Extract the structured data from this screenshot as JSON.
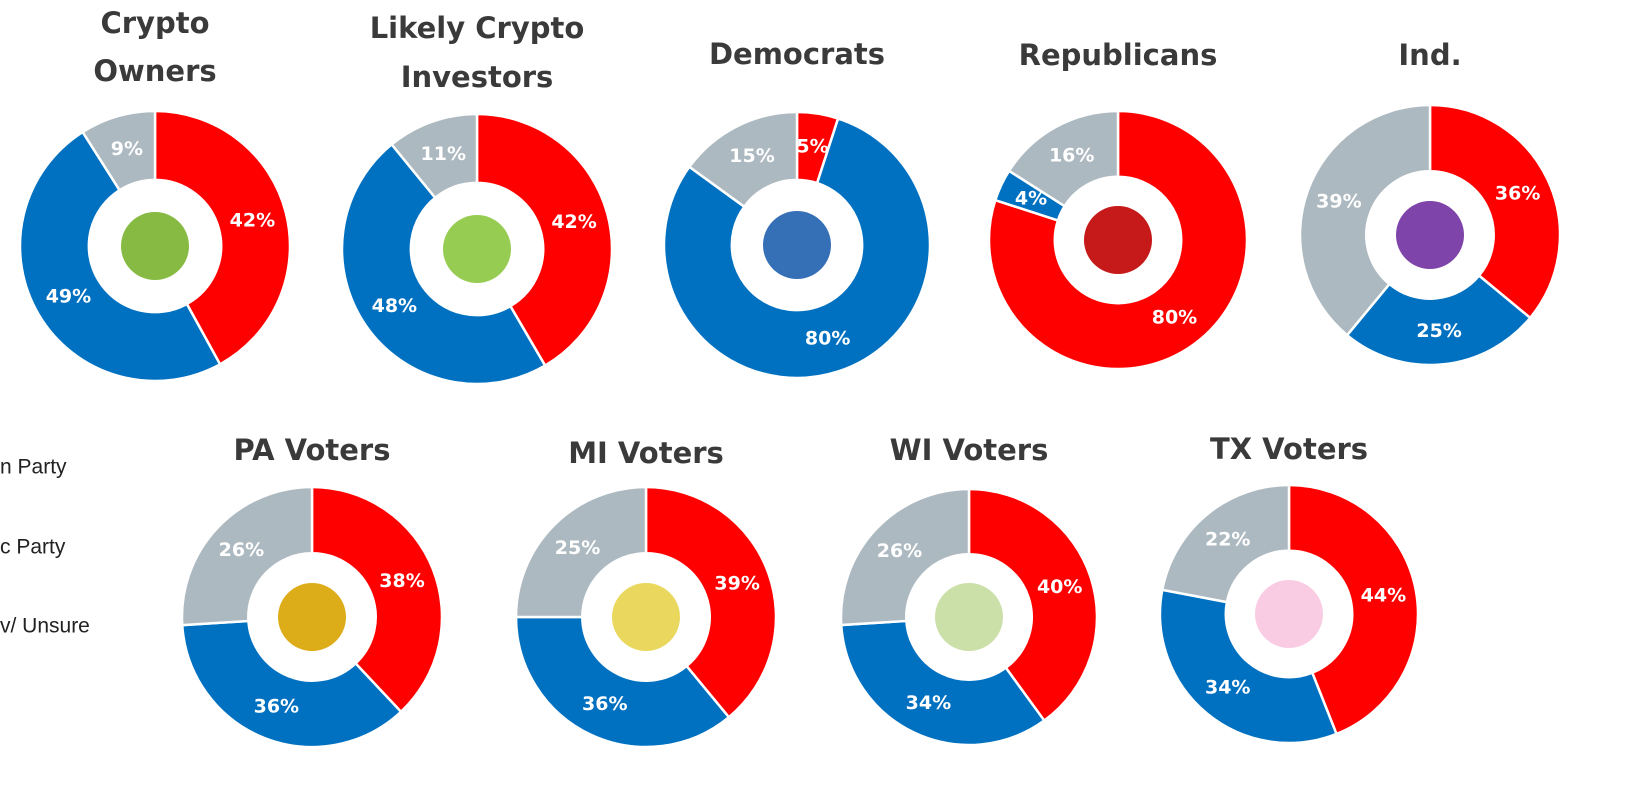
{
  "legend": {
    "items": [
      "n Party",
      "c Party",
      "v/ Unsure"
    ]
  },
  "chart_data": [
    {
      "type": "donut",
      "title": [
        "Crypto",
        "Owners"
      ],
      "values": [
        42,
        49,
        9
      ],
      "value_labels": [
        "42%",
        "49%",
        "9%"
      ],
      "colors": [
        "#ff0000",
        "#0070c0",
        "#adb9c0"
      ]
    },
    {
      "type": "donut",
      "title": [
        "Likely Crypto",
        "Investors"
      ],
      "values": [
        42,
        48,
        11
      ],
      "value_labels": [
        "42%",
        "48%",
        "11%"
      ],
      "colors": [
        "#ff0000",
        "#0070c0",
        "#adb9c0"
      ]
    },
    {
      "type": "donut",
      "title": [
        "Democrats"
      ],
      "values": [
        5,
        80,
        15
      ],
      "value_labels": [
        "5%",
        "80%",
        "15%"
      ],
      "colors": [
        "#ff0000",
        "#0070c0",
        "#adb9c0"
      ]
    },
    {
      "type": "donut",
      "title": [
        "Republicans"
      ],
      "values": [
        80,
        4,
        16
      ],
      "value_labels": [
        "80%",
        "4%",
        "16%"
      ],
      "colors": [
        "#ff0000",
        "#0070c0",
        "#adb9c0"
      ]
    },
    {
      "type": "donut",
      "title": [
        "Ind."
      ],
      "values": [
        36,
        25,
        39
      ],
      "value_labels": [
        "36%",
        "25%",
        "39%"
      ],
      "colors": [
        "#ff0000",
        "#0070c0",
        "#adb9c0"
      ]
    },
    {
      "type": "donut",
      "title": [
        "PA Voters"
      ],
      "values": [
        38,
        36,
        26
      ],
      "value_labels": [
        "38%",
        "36%",
        "26%"
      ],
      "colors": [
        "#ff0000",
        "#0070c0",
        "#adb9c0"
      ]
    },
    {
      "type": "donut",
      "title": [
        "MI Voters"
      ],
      "values": [
        39,
        36,
        25
      ],
      "value_labels": [
        "39%",
        "36%",
        "25%"
      ],
      "colors": [
        "#ff0000",
        "#0070c0",
        "#adb9c0"
      ]
    },
    {
      "type": "donut",
      "title": [
        "WI Voters"
      ],
      "values": [
        40,
        34,
        26
      ],
      "value_labels": [
        "40%",
        "34%",
        "26%"
      ],
      "colors": [
        "#ff0000",
        "#0070c0",
        "#adb9c0"
      ]
    },
    {
      "type": "donut",
      "title": [
        "TX Voters"
      ],
      "values": [
        44,
        34,
        22
      ],
      "value_labels": [
        "44%",
        "34%",
        "22%"
      ],
      "colors": [
        "#ff0000",
        "#0070c0",
        "#adb9c0"
      ]
    }
  ]
}
